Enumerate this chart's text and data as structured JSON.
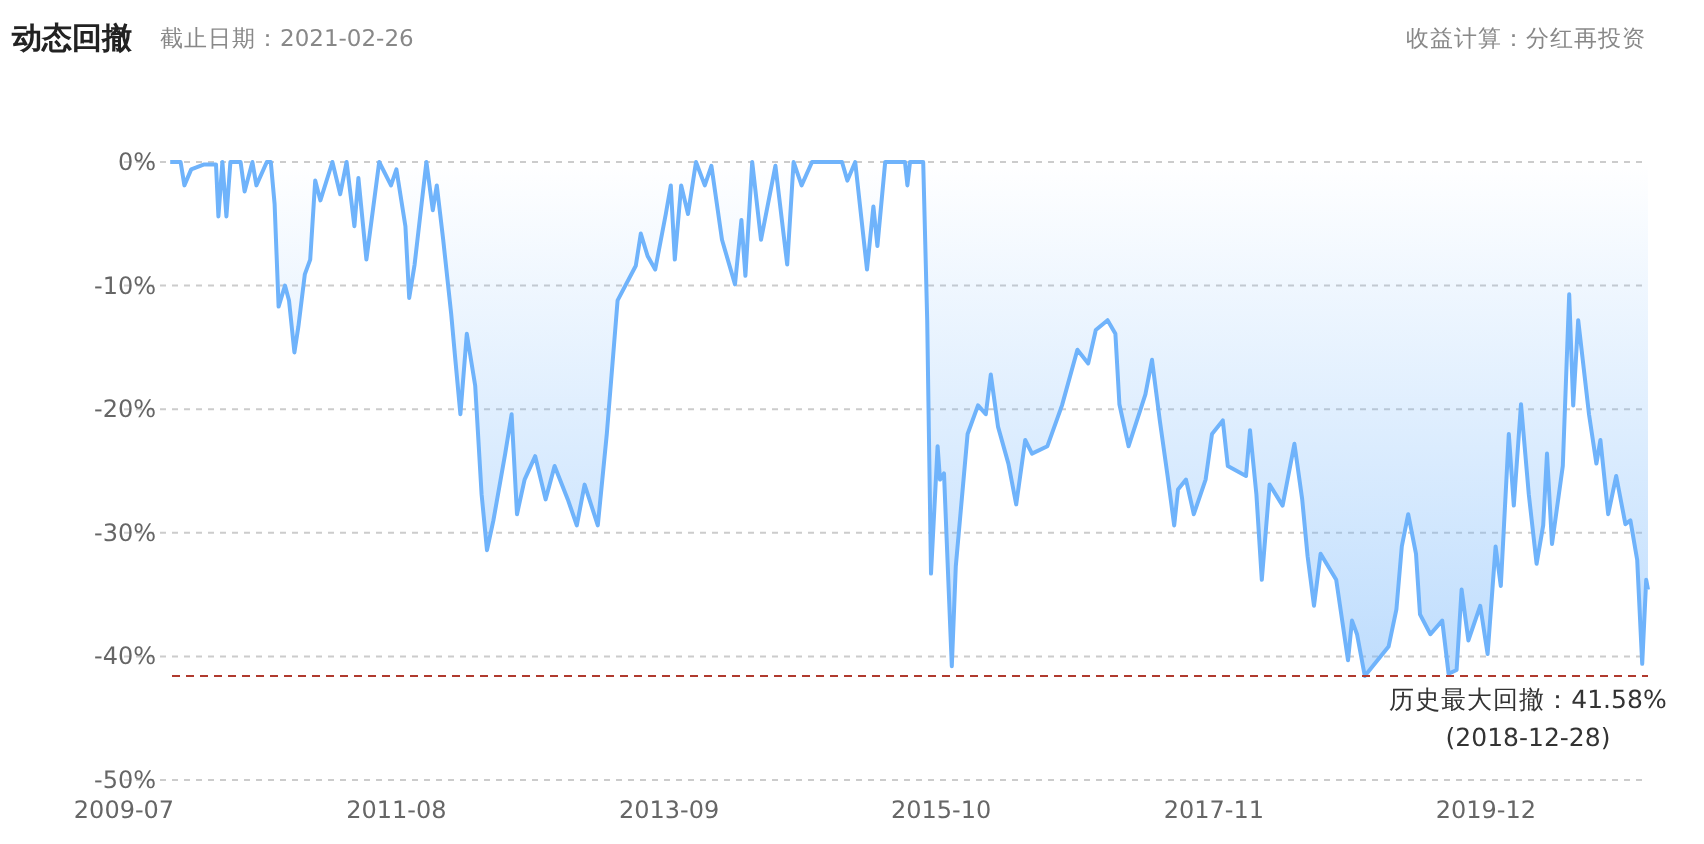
{
  "chart_data": {
    "type": "area",
    "title": "动态回撤",
    "subtitle": "截止日期：2021-02-26",
    "annotations": [
      "收益计算：分红再投资"
    ],
    "xlim": [
      "2009-07",
      "2021-02-26"
    ],
    "xticks": [
      "2009-07",
      "2011-08",
      "2013-09",
      "2015-10",
      "2017-11",
      "2019-12"
    ],
    "ylim": [
      -50,
      0
    ],
    "yticks": [
      {
        "value": 0,
        "label": "0%"
      },
      {
        "value": -10,
        "label": "-10%"
      },
      {
        "value": -20,
        "label": "-20%"
      },
      {
        "value": -30,
        "label": "-30%"
      },
      {
        "value": -40,
        "label": "-40%"
      },
      {
        "value": -50,
        "label": "-50%"
      }
    ],
    "grid": "y",
    "marker": "none",
    "line_style": "solid",
    "ref_lines": [
      {
        "axis": "y",
        "value": -41.58,
        "label": "历史最大回撤：41.58%\n(2018-12-28)",
        "color": "#b03a2e",
        "line_style": "dashed"
      }
    ],
    "series": [
      {
        "color": "#6fb3fb",
        "x": [
          "2009-11-07",
          "2009-12-06",
          "2009-12-17",
          "2010-01-05",
          "2010-02-10",
          "2010-03-15",
          "2010-03-22",
          "2010-04-02",
          "2010-04-13",
          "2010-04-24",
          "2010-05-23",
          "2010-06-03",
          "2010-06-25",
          "2010-07-06",
          "2010-08-04",
          "2010-08-15",
          "2010-08-26",
          "2010-09-06",
          "2010-09-24",
          "2010-10-05",
          "2010-10-20",
          "2010-10-31",
          "2010-11-18",
          "2010-12-03",
          "2010-12-17",
          "2011-01-01",
          "2011-02-03",
          "2011-02-25",
          "2011-03-15",
          "2011-04-06",
          "2011-04-17",
          "2011-05-09",
          "2011-06-14",
          "2011-07-17",
          "2011-08-01",
          "2011-08-26",
          "2011-09-06",
          "2011-09-21",
          "2011-10-24",
          "2011-11-11",
          "2011-11-22",
          "2011-12-10",
          "2012-01-01",
          "2012-01-12",
          "2012-01-27",
          "2012-02-14",
          "2012-03-08",
          "2012-03-26",
          "2012-04-10",
          "2012-04-28",
          "2012-05-31",
          "2012-06-18",
          "2012-07-03",
          "2012-07-24",
          "2012-08-23",
          "2012-09-21",
          "2012-10-16",
          "2012-11-22",
          "2012-12-17",
          "2013-01-08",
          "2013-02-14",
          "2013-03-11",
          "2013-04-10",
          "2013-05-31",
          "2013-06-14",
          "2013-07-03",
          "2013-07-24",
          "2013-08-23",
          "2013-09-06",
          "2013-09-17",
          "2013-10-05",
          "2013-10-24",
          "2013-11-15",
          "2013-12-10",
          "2013-12-28",
          "2014-01-27",
          "2014-03-04",
          "2014-03-22",
          "2014-04-02",
          "2014-04-21",
          "2014-05-16",
          "2014-06-25",
          "2014-07-28",
          "2014-08-15",
          "2014-09-06",
          "2014-10-05",
          "2014-12-28",
          "2015-01-12",
          "2015-02-03",
          "2015-03-08",
          "2015-03-26",
          "2015-04-06",
          "2015-04-28",
          "2015-06-22",
          "2015-06-29",
          "2015-07-06",
          "2015-08-12",
          "2015-08-23",
          "2015-09-03",
          "2015-09-21",
          "2015-09-28",
          "2015-10-09",
          "2015-10-31",
          "2015-11-11",
          "2015-12-14",
          "2016-01-12",
          "2016-02-03",
          "2016-02-17",
          "2016-03-08",
          "2016-04-06",
          "2016-04-28",
          "2016-05-23",
          "2016-06-11",
          "2016-07-24",
          "2016-09-03",
          "2016-10-16",
          "2016-11-15",
          "2016-12-06",
          "2017-01-08",
          "2017-01-30",
          "2017-02-10",
          "2017-03-08",
          "2017-04-24",
          "2017-05-12",
          "2017-06-03",
          "2017-06-25",
          "2017-07-13",
          "2017-07-24",
          "2017-08-15",
          "2017-09-06",
          "2017-10-09",
          "2017-10-27",
          "2017-11-26",
          "2017-12-10",
          "2018-01-30",
          "2018-02-10",
          "2018-02-28",
          "2018-03-15",
          "2018-04-06",
          "2018-05-12",
          "2018-06-14",
          "2018-07-06",
          "2018-07-21",
          "2018-08-08",
          "2018-08-26",
          "2018-10-09",
          "2018-11-11",
          "2018-11-22",
          "2018-12-06",
          "2018-12-28",
          "2019-03-04",
          "2019-03-26",
          "2019-04-10",
          "2019-04-28",
          "2019-05-20",
          "2019-05-31",
          "2019-06-29",
          "2019-08-01",
          "2019-08-19",
          "2019-09-10",
          "2019-09-24",
          "2019-10-13",
          "2019-11-15",
          "2019-12-06",
          "2019-12-28",
          "2020-01-12",
          "2020-02-03",
          "2020-02-17",
          "2020-03-08",
          "2020-03-30",
          "2020-04-21",
          "2020-05-09",
          "2020-05-20",
          "2020-06-03",
          "2020-07-03",
          "2020-07-21",
          "2020-08-01",
          "2020-08-15",
          "2020-09-14",
          "2020-10-05",
          "2020-10-16",
          "2020-11-07",
          "2020-11-29",
          "2020-12-25",
          "2021-01-08",
          "2021-01-27",
          "2021-02-10",
          "2021-02-21",
          "2021-02-26"
        ],
        "values": [
          0,
          0,
          -1.9,
          -0.6,
          -0.2,
          -0.2,
          -4.4,
          0,
          -4.4,
          0,
          0,
          -2.4,
          0,
          -1.9,
          0,
          0,
          -3.4,
          -11.7,
          -10.0,
          -11.2,
          -15.4,
          -13.3,
          -9.1,
          -7.9,
          -1.5,
          -3.1,
          0,
          -2.6,
          0,
          -5.2,
          -1.3,
          -7.9,
          0,
          -1.9,
          -0.6,
          -5.2,
          -11.0,
          -8.3,
          0,
          -3.9,
          -1.9,
          -6.3,
          -12.3,
          -15.7,
          -20.4,
          -13.9,
          -18.1,
          -26.9,
          -31.4,
          -29.0,
          -23.6,
          -20.4,
          -28.5,
          -25.7,
          -23.8,
          -27.3,
          -24.6,
          -27.3,
          -29.4,
          -26.1,
          -29.4,
          -22.0,
          -11.2,
          -8.4,
          -5.8,
          -7.6,
          -8.7,
          -4.2,
          -1.9,
          -7.9,
          -1.9,
          -4.2,
          0,
          -1.9,
          -0.3,
          -6.3,
          -9.9,
          -4.7,
          -9.2,
          0,
          -6.3,
          -0.3,
          -8.3,
          0,
          -1.9,
          0,
          0,
          -1.5,
          0,
          -8.7,
          -3.6,
          -6.8,
          0,
          0,
          -1.9,
          0,
          0,
          -12.8,
          -33.3,
          -23.0,
          -25.7,
          -25.2,
          -40.8,
          -32.7,
          -22.0,
          -19.7,
          -20.4,
          -17.2,
          -21.4,
          -24.4,
          -27.7,
          -22.5,
          -23.6,
          -23.0,
          -19.7,
          -15.2,
          -16.3,
          -13.6,
          -12.8,
          -13.9,
          -19.6,
          -23.0,
          -18.8,
          -16.0,
          -20.9,
          -25.4,
          -29.4,
          -26.5,
          -25.7,
          -28.5,
          -25.7,
          -22.0,
          -20.9,
          -24.6,
          -25.4,
          -21.7,
          -26.9,
          -33.8,
          -26.1,
          -27.8,
          -22.8,
          -27.3,
          -31.9,
          -35.9,
          -31.7,
          -33.8,
          -40.3,
          -37.1,
          -38.2,
          -41.58,
          -39.2,
          -36.2,
          -31.1,
          -28.5,
          -31.7,
          -36.6,
          -38.2,
          -37.1,
          -41.4,
          -41.1,
          -34.6,
          -38.7,
          -35.9,
          -39.8,
          -31.1,
          -34.3,
          -22.0,
          -27.8,
          -19.6,
          -26.9,
          -32.5,
          -29.4,
          -23.6,
          -30.9,
          -24.6,
          -10.7,
          -19.7,
          -12.8,
          -20.4,
          -24.4,
          -22.5,
          -28.5,
          -25.4,
          -29.3,
          -29.0,
          -32.2,
          -40.6,
          -33.8,
          -34.6
        ]
      }
    ]
  }
}
